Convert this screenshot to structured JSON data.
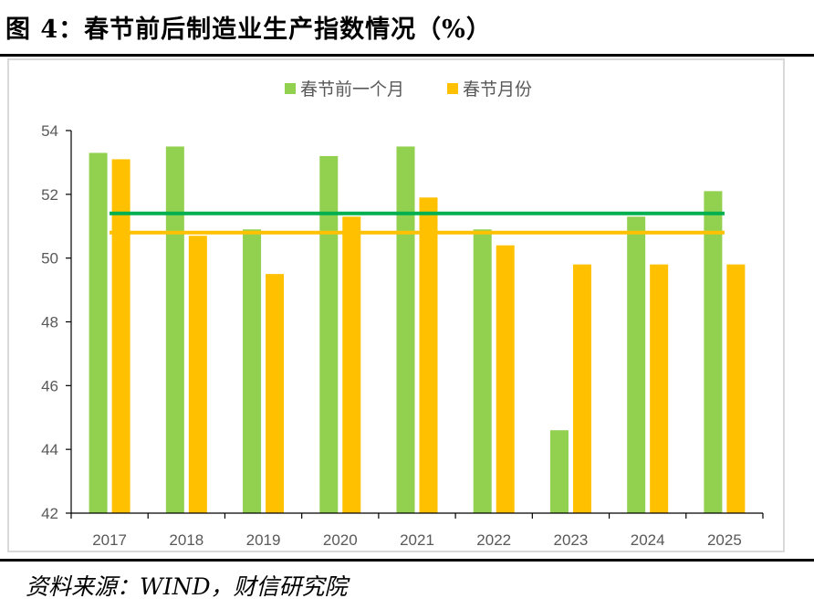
{
  "figure": {
    "title": "图 4：春节前后制造业生产指数情况（%）",
    "source": "资料来源：WIND，财信研究院"
  },
  "chart_data": {
    "type": "bar",
    "categories": [
      "2017",
      "2018",
      "2019",
      "2020",
      "2021",
      "2022",
      "2023",
      "2024",
      "2025"
    ],
    "series": [
      {
        "name": "春节前一个月",
        "color": "#92d050",
        "values": [
          53.3,
          53.5,
          50.9,
          53.2,
          53.5,
          50.9,
          44.6,
          51.3,
          52.1
        ]
      },
      {
        "name": "春节月份",
        "color": "#ffc000",
        "values": [
          53.1,
          50.7,
          49.5,
          51.3,
          51.9,
          50.4,
          49.8,
          49.8,
          49.8
        ]
      }
    ],
    "reference_lines": [
      {
        "color": "#00b050",
        "value": 51.4
      },
      {
        "color": "#ffc000",
        "value": 50.8
      }
    ],
    "ylim": [
      42,
      54
    ],
    "yticks": [
      42,
      44,
      46,
      48,
      50,
      52,
      54
    ],
    "grid": false,
    "legend": "top-center"
  }
}
